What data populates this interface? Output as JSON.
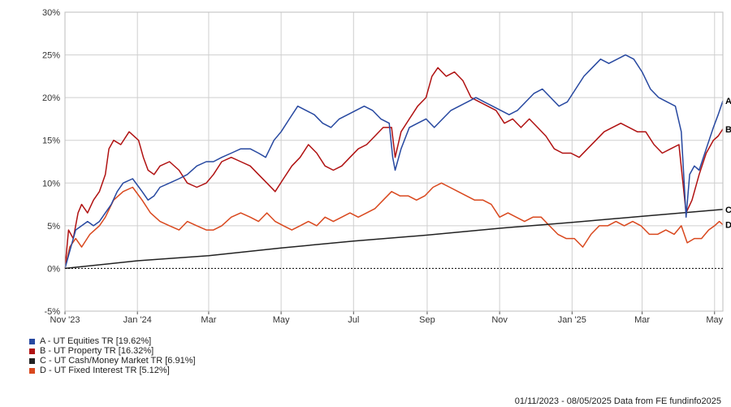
{
  "chart_data": {
    "type": "line",
    "title": "",
    "xlabel": "",
    "ylabel": "",
    "y_tick_labels": [
      "-5%",
      "0%",
      "5%",
      "10%",
      "15%",
      "20%",
      "25%",
      "30%"
    ],
    "y_tick_values": [
      -5,
      0,
      5,
      10,
      15,
      20,
      25,
      30
    ],
    "ylim": [
      -5,
      30
    ],
    "x_tick_labels": [
      "Nov '23",
      "Jan '24",
      "Mar",
      "May",
      "Jul",
      "Sep",
      "Nov",
      "Jan '25",
      "Mar",
      "May"
    ],
    "x_tick_dates": [
      "2023-11-01",
      "2024-01-01",
      "2024-03-01",
      "2024-05-01",
      "2024-07-01",
      "2024-09-01",
      "2024-11-01",
      "2025-01-01",
      "2025-03-01",
      "2025-05-01"
    ],
    "xlim": [
      "2023-11-01",
      "2025-05-08"
    ],
    "grid": true,
    "legend_position": "bottom-left",
    "series": [
      {
        "name": "A - UT Equities TR [19.62%]",
        "end_label": "A",
        "color": "#2748a0",
        "points": [
          [
            "2023-11-01",
            0
          ],
          [
            "2023-11-05",
            2
          ],
          [
            "2023-11-10",
            4.5
          ],
          [
            "2023-11-15",
            5
          ],
          [
            "2023-11-20",
            5.5
          ],
          [
            "2023-11-25",
            5
          ],
          [
            "2023-11-30",
            5.5
          ],
          [
            "2023-12-05",
            6.5
          ],
          [
            "2023-12-10",
            7.5
          ],
          [
            "2023-12-15",
            9
          ],
          [
            "2023-12-20",
            10
          ],
          [
            "2023-12-28",
            10.5
          ],
          [
            "2024-01-05",
            9
          ],
          [
            "2024-01-10",
            8
          ],
          [
            "2024-01-15",
            8.5
          ],
          [
            "2024-01-20",
            9.5
          ],
          [
            "2024-01-28",
            10
          ],
          [
            "2024-02-05",
            10.5
          ],
          [
            "2024-02-12",
            11
          ],
          [
            "2024-02-20",
            12
          ],
          [
            "2024-02-28",
            12.5
          ],
          [
            "2024-03-05",
            12.5
          ],
          [
            "2024-03-12",
            13
          ],
          [
            "2024-03-20",
            13.5
          ],
          [
            "2024-03-28",
            14
          ],
          [
            "2024-04-05",
            14
          ],
          [
            "2024-04-12",
            13.5
          ],
          [
            "2024-04-18",
            13
          ],
          [
            "2024-04-25",
            15
          ],
          [
            "2024-05-01",
            16
          ],
          [
            "2024-05-08",
            17.5
          ],
          [
            "2024-05-15",
            19
          ],
          [
            "2024-05-22",
            18.5
          ],
          [
            "2024-05-29",
            18
          ],
          [
            "2024-06-05",
            17
          ],
          [
            "2024-06-12",
            16.5
          ],
          [
            "2024-06-19",
            17.5
          ],
          [
            "2024-06-26",
            18
          ],
          [
            "2024-07-03",
            18.5
          ],
          [
            "2024-07-10",
            19
          ],
          [
            "2024-07-17",
            18.5
          ],
          [
            "2024-07-24",
            17.5
          ],
          [
            "2024-07-31",
            17
          ],
          [
            "2024-08-03",
            13
          ],
          [
            "2024-08-05",
            11.5
          ],
          [
            "2024-08-10",
            14
          ],
          [
            "2024-08-17",
            16.5
          ],
          [
            "2024-08-24",
            17
          ],
          [
            "2024-08-31",
            17.5
          ],
          [
            "2024-09-07",
            16.5
          ],
          [
            "2024-09-14",
            17.5
          ],
          [
            "2024-09-21",
            18.5
          ],
          [
            "2024-09-28",
            19
          ],
          [
            "2024-10-05",
            19.5
          ],
          [
            "2024-10-12",
            20
          ],
          [
            "2024-10-19",
            19.5
          ],
          [
            "2024-10-26",
            19
          ],
          [
            "2024-11-02",
            18.5
          ],
          [
            "2024-11-09",
            18
          ],
          [
            "2024-11-16",
            18.5
          ],
          [
            "2024-11-23",
            19.5
          ],
          [
            "2024-11-30",
            20.5
          ],
          [
            "2024-12-07",
            21
          ],
          [
            "2024-12-14",
            20
          ],
          [
            "2024-12-21",
            19
          ],
          [
            "2024-12-28",
            19.5
          ],
          [
            "2025-01-04",
            21
          ],
          [
            "2025-01-11",
            22.5
          ],
          [
            "2025-01-18",
            23.5
          ],
          [
            "2025-01-25",
            24.5
          ],
          [
            "2025-02-01",
            24
          ],
          [
            "2025-02-08",
            24.5
          ],
          [
            "2025-02-15",
            25
          ],
          [
            "2025-02-22",
            24.5
          ],
          [
            "2025-03-01",
            23
          ],
          [
            "2025-03-08",
            21
          ],
          [
            "2025-03-15",
            20
          ],
          [
            "2025-03-22",
            19.5
          ],
          [
            "2025-03-29",
            19
          ],
          [
            "2025-04-03",
            16
          ],
          [
            "2025-04-07",
            6
          ],
          [
            "2025-04-10",
            11
          ],
          [
            "2025-04-14",
            12
          ],
          [
            "2025-04-18",
            11.5
          ],
          [
            "2025-04-24",
            14
          ],
          [
            "2025-04-30",
            16.5
          ],
          [
            "2025-05-04",
            18
          ],
          [
            "2025-05-08",
            19.62
          ]
        ]
      },
      {
        "name": "B - UT Property TR [16.32%]",
        "end_label": "B",
        "color": "#b01111",
        "points": [
          [
            "2023-11-01",
            0
          ],
          [
            "2023-11-04",
            4.5
          ],
          [
            "2023-11-08",
            3.5
          ],
          [
            "2023-11-12",
            6.5
          ],
          [
            "2023-11-15",
            7.5
          ],
          [
            "2023-11-20",
            6.5
          ],
          [
            "2023-11-25",
            8
          ],
          [
            "2023-11-30",
            9
          ],
          [
            "2023-12-05",
            11
          ],
          [
            "2023-12-08",
            14
          ],
          [
            "2023-12-12",
            15
          ],
          [
            "2023-12-18",
            14.5
          ],
          [
            "2023-12-25",
            16
          ],
          [
            "2024-01-02",
            15
          ],
          [
            "2024-01-06",
            13
          ],
          [
            "2024-01-10",
            11.5
          ],
          [
            "2024-01-15",
            11
          ],
          [
            "2024-01-20",
            12
          ],
          [
            "2024-01-28",
            12.5
          ],
          [
            "2024-02-05",
            11.5
          ],
          [
            "2024-02-12",
            10
          ],
          [
            "2024-02-20",
            9.5
          ],
          [
            "2024-02-28",
            10
          ],
          [
            "2024-03-05",
            11
          ],
          [
            "2024-03-12",
            12.5
          ],
          [
            "2024-03-20",
            13
          ],
          [
            "2024-03-28",
            12.5
          ],
          [
            "2024-04-05",
            12
          ],
          [
            "2024-04-12",
            11
          ],
          [
            "2024-04-19",
            10
          ],
          [
            "2024-04-26",
            9
          ],
          [
            "2024-05-03",
            10.5
          ],
          [
            "2024-05-10",
            12
          ],
          [
            "2024-05-17",
            13
          ],
          [
            "2024-05-24",
            14.5
          ],
          [
            "2024-05-31",
            13.5
          ],
          [
            "2024-06-07",
            12
          ],
          [
            "2024-06-14",
            11.5
          ],
          [
            "2024-06-21",
            12
          ],
          [
            "2024-06-28",
            13
          ],
          [
            "2024-07-05",
            14
          ],
          [
            "2024-07-12",
            14.5
          ],
          [
            "2024-07-19",
            15.5
          ],
          [
            "2024-07-26",
            16.5
          ],
          [
            "2024-08-02",
            16.5
          ],
          [
            "2024-08-05",
            13
          ],
          [
            "2024-08-10",
            16
          ],
          [
            "2024-08-17",
            17.5
          ],
          [
            "2024-08-24",
            19
          ],
          [
            "2024-08-31",
            20
          ],
          [
            "2024-09-05",
            22.5
          ],
          [
            "2024-09-10",
            23.5
          ],
          [
            "2024-09-17",
            22.5
          ],
          [
            "2024-09-24",
            23
          ],
          [
            "2024-10-01",
            22
          ],
          [
            "2024-10-08",
            20
          ],
          [
            "2024-10-15",
            19.5
          ],
          [
            "2024-10-22",
            19
          ],
          [
            "2024-10-29",
            18.5
          ],
          [
            "2024-11-05",
            17
          ],
          [
            "2024-11-12",
            17.5
          ],
          [
            "2024-11-19",
            16.5
          ],
          [
            "2024-11-26",
            17.5
          ],
          [
            "2024-12-03",
            16.5
          ],
          [
            "2024-12-10",
            15.5
          ],
          [
            "2024-12-17",
            14
          ],
          [
            "2024-12-24",
            13.5
          ],
          [
            "2024-12-31",
            13.5
          ],
          [
            "2025-01-07",
            13
          ],
          [
            "2025-01-14",
            14
          ],
          [
            "2025-01-21",
            15
          ],
          [
            "2025-01-28",
            16
          ],
          [
            "2025-02-04",
            16.5
          ],
          [
            "2025-02-11",
            17
          ],
          [
            "2025-02-18",
            16.5
          ],
          [
            "2025-02-25",
            16
          ],
          [
            "2025-03-04",
            16
          ],
          [
            "2025-03-11",
            14.5
          ],
          [
            "2025-03-18",
            13.5
          ],
          [
            "2025-03-25",
            14
          ],
          [
            "2025-04-01",
            14.5
          ],
          [
            "2025-04-07",
            6.5
          ],
          [
            "2025-04-12",
            8
          ],
          [
            "2025-04-18",
            11
          ],
          [
            "2025-04-24",
            13.5
          ],
          [
            "2025-04-30",
            15
          ],
          [
            "2025-05-04",
            15.5
          ],
          [
            "2025-05-08",
            16.32
          ]
        ]
      },
      {
        "name": "C - UT Cash/Money Market TR [6.91%]",
        "end_label": "C",
        "color": "#222222",
        "points": [
          [
            "2023-11-01",
            0
          ],
          [
            "2024-01-01",
            0.9
          ],
          [
            "2024-03-01",
            1.5
          ],
          [
            "2024-05-01",
            2.4
          ],
          [
            "2024-07-01",
            3.2
          ],
          [
            "2024-09-01",
            3.9
          ],
          [
            "2024-11-01",
            4.7
          ],
          [
            "2025-01-01",
            5.4
          ],
          [
            "2025-03-01",
            6.1
          ],
          [
            "2025-05-08",
            6.91
          ]
        ]
      },
      {
        "name": "D - UT Fixed Interest TR [5.12%]",
        "end_label": "D",
        "color": "#d9481e",
        "points": [
          [
            "2023-11-01",
            0
          ],
          [
            "2023-11-05",
            2.5
          ],
          [
            "2023-11-10",
            3.5
          ],
          [
            "2023-11-15",
            2.5
          ],
          [
            "2023-11-22",
            4
          ],
          [
            "2023-11-30",
            5
          ],
          [
            "2023-12-05",
            6
          ],
          [
            "2023-12-12",
            8
          ],
          [
            "2023-12-20",
            9
          ],
          [
            "2023-12-28",
            9.5
          ],
          [
            "2024-01-05",
            8
          ],
          [
            "2024-01-12",
            6.5
          ],
          [
            "2024-01-20",
            5.5
          ],
          [
            "2024-01-28",
            5
          ],
          [
            "2024-02-05",
            4.5
          ],
          [
            "2024-02-12",
            5.5
          ],
          [
            "2024-02-20",
            5
          ],
          [
            "2024-02-28",
            4.5
          ],
          [
            "2024-03-05",
            4.5
          ],
          [
            "2024-03-12",
            5
          ],
          [
            "2024-03-20",
            6
          ],
          [
            "2024-03-28",
            6.5
          ],
          [
            "2024-04-05",
            6
          ],
          [
            "2024-04-12",
            5.5
          ],
          [
            "2024-04-19",
            6.5
          ],
          [
            "2024-04-26",
            5.5
          ],
          [
            "2024-05-03",
            5
          ],
          [
            "2024-05-10",
            4.5
          ],
          [
            "2024-05-17",
            5
          ],
          [
            "2024-05-24",
            5.5
          ],
          [
            "2024-05-31",
            5
          ],
          [
            "2024-06-07",
            6
          ],
          [
            "2024-06-14",
            5.5
          ],
          [
            "2024-06-21",
            6
          ],
          [
            "2024-06-28",
            6.5
          ],
          [
            "2024-07-05",
            6
          ],
          [
            "2024-07-12",
            6.5
          ],
          [
            "2024-07-19",
            7
          ],
          [
            "2024-07-26",
            8
          ],
          [
            "2024-08-02",
            9
          ],
          [
            "2024-08-09",
            8.5
          ],
          [
            "2024-08-16",
            8.5
          ],
          [
            "2024-08-23",
            8
          ],
          [
            "2024-08-30",
            8.5
          ],
          [
            "2024-09-06",
            9.5
          ],
          [
            "2024-09-13",
            10
          ],
          [
            "2024-09-20",
            9.5
          ],
          [
            "2024-09-27",
            9
          ],
          [
            "2024-10-04",
            8.5
          ],
          [
            "2024-10-11",
            8
          ],
          [
            "2024-10-18",
            8
          ],
          [
            "2024-10-25",
            7.5
          ],
          [
            "2024-11-01",
            6
          ],
          [
            "2024-11-08",
            6.5
          ],
          [
            "2024-11-15",
            6
          ],
          [
            "2024-11-22",
            5.5
          ],
          [
            "2024-11-29",
            6
          ],
          [
            "2024-12-06",
            6
          ],
          [
            "2024-12-13",
            5
          ],
          [
            "2024-12-20",
            4
          ],
          [
            "2024-12-27",
            3.5
          ],
          [
            "2025-01-03",
            3.5
          ],
          [
            "2025-01-10",
            2.5
          ],
          [
            "2025-01-17",
            4
          ],
          [
            "2025-01-24",
            5
          ],
          [
            "2025-01-31",
            5
          ],
          [
            "2025-02-07",
            5.5
          ],
          [
            "2025-02-14",
            5
          ],
          [
            "2025-02-21",
            5.5
          ],
          [
            "2025-02-28",
            5
          ],
          [
            "2025-03-07",
            4
          ],
          [
            "2025-03-14",
            4
          ],
          [
            "2025-03-21",
            4.5
          ],
          [
            "2025-03-28",
            4
          ],
          [
            "2025-04-03",
            5
          ],
          [
            "2025-04-08",
            3
          ],
          [
            "2025-04-14",
            3.5
          ],
          [
            "2025-04-20",
            3.5
          ],
          [
            "2025-04-26",
            4.5
          ],
          [
            "2025-05-01",
            5
          ],
          [
            "2025-05-05",
            5.5
          ],
          [
            "2025-05-08",
            5.12
          ]
        ]
      }
    ]
  },
  "footer": {
    "text": "01/11/2023 - 08/05/2025 Data from FE fundinfo2025"
  }
}
